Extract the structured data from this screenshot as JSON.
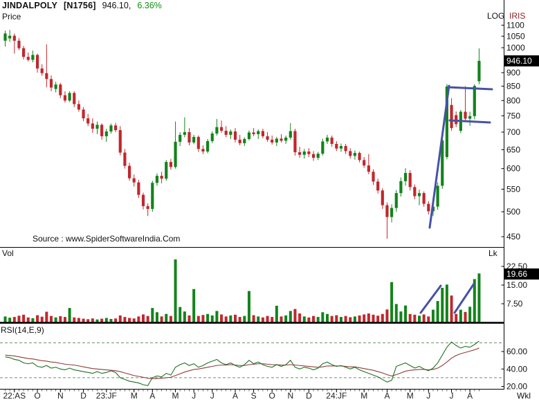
{
  "header": {
    "symbol": "JINDALPOLY",
    "series": "[N1756]",
    "price": "946.10,",
    "change": "6.36%"
  },
  "price_panel": {
    "label": "Price",
    "scale_label": "LOG",
    "app_label": "IRIS",
    "marker": "946.10",
    "source_text": "Source : www.SpiderSoftwareIndia.Com"
  },
  "volume_panel": {
    "label": "Vol",
    "unit_label": "Lk",
    "marker": "19.66"
  },
  "rsi_panel": {
    "label": "RSI(14,E,9)"
  },
  "x_axis": {
    "timeframe_label": "Wkl"
  },
  "chart_data": {
    "type": "candlestick",
    "timeframe": "Weekly",
    "symbol": "JINDALPOLY",
    "scale": "log",
    "ylim_price": [
      450,
      1100
    ],
    "last_price": 946.1,
    "last_volume_lk": 19.66,
    "colors": {
      "up": "#12841a",
      "down": "#c1272d",
      "annotation": "#4552a8",
      "rsi": "#1f6f1f",
      "rsi_signal": "#8e3b3b",
      "band": "#6b8f6b"
    },
    "price_ticks": [
      1100,
      1050,
      1000,
      900,
      850,
      800,
      750,
      700,
      650,
      600,
      550,
      500,
      450
    ],
    "vol_ticks": [
      {
        "v": 22.5,
        "label": "22.50"
      },
      {
        "v": 15,
        "label": "15.00"
      },
      {
        "v": 7.5,
        "label": "7.50"
      }
    ],
    "rsi_ticks": [
      {
        "v": 60,
        "label": "60.00"
      },
      {
        "v": 40,
        "label": "40.00"
      },
      {
        "v": 20,
        "label": "20.00"
      }
    ],
    "rsi_bands": [
      70,
      30
    ],
    "x_labels": [
      {
        "t": "22:AS",
        "i": 2
      },
      {
        "t": "O",
        "i": 7
      },
      {
        "t": "N",
        "i": 12
      },
      {
        "t": "D",
        "i": 17
      },
      {
        "t": "23:JF",
        "i": 22
      },
      {
        "t": "M",
        "i": 28
      },
      {
        "t": "A",
        "i": 32
      },
      {
        "t": "M",
        "i": 37
      },
      {
        "t": "J",
        "i": 41
      },
      {
        "t": "J",
        "i": 45
      },
      {
        "t": "A",
        "i": 50
      },
      {
        "t": "S",
        "i": 54
      },
      {
        "t": "O",
        "i": 58
      },
      {
        "t": "N",
        "i": 62
      },
      {
        "t": "D",
        "i": 66
      },
      {
        "t": "24:JF",
        "i": 72
      },
      {
        "t": "M",
        "i": 78
      },
      {
        "t": "A",
        "i": 83
      },
      {
        "t": "M",
        "i": 88
      },
      {
        "t": "J",
        "i": 92
      },
      {
        "t": "J",
        "i": 97
      },
      {
        "t": "A",
        "i": 101
      }
    ],
    "candles": [
      [
        1030,
        1075,
        1005,
        1062
      ],
      [
        1040,
        1078,
        1025,
        1052
      ],
      [
        1052,
        1062,
        975,
        1030
      ],
      [
        1030,
        1042,
        990,
        998
      ],
      [
        998,
        1008,
        952,
        962
      ],
      [
        962,
        980,
        944,
        950
      ],
      [
        950,
        988,
        940,
        970
      ],
      [
        970,
        975,
        900,
        916
      ],
      [
        916,
        932,
        888,
        898
      ],
      [
        898,
        1014,
        846,
        876
      ],
      [
        876,
        890,
        832,
        845
      ],
      [
        840,
        866,
        828,
        856
      ],
      [
        856,
        862,
        808,
        818
      ],
      [
        818,
        832,
        793,
        800
      ],
      [
        800,
        832,
        795,
        826
      ],
      [
        826,
        832,
        778,
        788
      ],
      [
        788,
        800,
        763,
        770
      ],
      [
        770,
        778,
        733,
        742
      ],
      [
        742,
        756,
        718,
        726
      ],
      [
        726,
        742,
        698,
        710
      ],
      [
        710,
        732,
        694,
        722
      ],
      [
        722,
        726,
        678,
        688
      ],
      [
        688,
        710,
        672,
        702
      ],
      [
        702,
        726,
        696,
        720
      ],
      [
        720,
        728,
        700,
        706
      ],
      [
        706,
        718,
        635,
        642
      ],
      [
        642,
        652,
        600,
        607
      ],
      [
        607,
        615,
        570,
        576
      ],
      [
        576,
        585,
        556,
        566
      ],
      [
        566,
        572,
        530,
        537
      ],
      [
        537,
        542,
        505,
        512
      ],
      [
        512,
        518,
        491,
        506
      ],
      [
        506,
        570,
        500,
        565
      ],
      [
        565,
        588,
        558,
        582
      ],
      [
        582,
        592,
        564,
        575
      ],
      [
        575,
        622,
        570,
        617
      ],
      [
        617,
        625,
        597,
        604
      ],
      [
        604,
        732,
        600,
        672
      ],
      [
        672,
        700,
        660,
        692
      ],
      [
        692,
        745,
        685,
        700
      ],
      [
        700,
        712,
        662,
        670
      ],
      [
        670,
        692,
        665,
        686
      ],
      [
        686,
        690,
        644,
        652
      ],
      [
        652,
        662,
        638,
        645
      ],
      [
        645,
        680,
        640,
        674
      ],
      [
        674,
        702,
        668,
        696
      ],
      [
        696,
        740,
        690,
        715
      ],
      [
        715,
        735,
        698,
        704
      ],
      [
        704,
        718,
        685,
        692
      ],
      [
        692,
        708,
        680,
        702
      ],
      [
        702,
        712,
        670,
        678
      ],
      [
        678,
        692,
        662,
        668
      ],
      [
        668,
        685,
        660,
        680
      ],
      [
        680,
        705,
        676,
        699
      ],
      [
        699,
        712,
        688,
        694
      ],
      [
        694,
        708,
        680,
        703
      ],
      [
        703,
        710,
        682,
        688
      ],
      [
        688,
        700,
        672,
        678
      ],
      [
        678,
        690,
        664,
        670
      ],
      [
        670,
        686,
        660,
        681
      ],
      [
        681,
        694,
        670,
        675
      ],
      [
        675,
        690,
        666,
        684
      ],
      [
        684,
        727,
        678,
        703
      ],
      [
        703,
        710,
        634,
        643
      ],
      [
        643,
        658,
        628,
        636
      ],
      [
        636,
        652,
        626,
        645
      ],
      [
        645,
        654,
        630,
        638
      ],
      [
        638,
        646,
        620,
        628
      ],
      [
        628,
        644,
        622,
        639
      ],
      [
        639,
        681,
        634,
        673
      ],
      [
        673,
        692,
        666,
        684
      ],
      [
        684,
        690,
        658,
        666
      ],
      [
        666,
        674,
        646,
        653
      ],
      [
        653,
        667,
        644,
        660
      ],
      [
        660,
        666,
        638,
        646
      ],
      [
        646,
        654,
        626,
        633
      ],
      [
        633,
        648,
        623,
        641
      ],
      [
        641,
        645,
        616,
        622
      ],
      [
        622,
        630,
        602,
        608
      ],
      [
        608,
        638,
        586,
        592
      ],
      [
        592,
        598,
        560,
        568
      ],
      [
        568,
        575,
        540,
        547
      ],
      [
        547,
        552,
        506,
        514
      ],
      [
        514,
        520,
        446,
        489
      ],
      [
        489,
        516,
        478,
        508
      ],
      [
        508,
        548,
        500,
        541
      ],
      [
        541,
        578,
        533,
        569
      ],
      [
        569,
        601,
        558,
        589
      ],
      [
        589,
        596,
        547,
        555
      ],
      [
        555,
        561,
        527,
        534
      ],
      [
        534,
        549,
        514,
        541
      ],
      [
        541,
        545,
        511,
        517
      ],
      [
        517,
        523,
        494,
        501
      ],
      [
        501,
        516,
        491,
        511
      ],
      [
        511,
        566,
        504,
        558
      ],
      [
        558,
        683,
        551,
        676
      ],
      [
        630,
        858,
        624,
        849
      ],
      [
        785,
        808,
        704,
        712
      ],
      [
        752,
        764,
        715,
        724
      ],
      [
        704,
        769,
        697,
        763
      ],
      [
        763,
        850,
        734,
        741
      ],
      [
        741,
        763,
        719,
        749
      ],
      [
        749,
        857,
        739,
        851
      ],
      [
        868,
        997,
        857,
        946.1
      ]
    ],
    "volumes": [
      2.4,
      1.9,
      2.2,
      2.7,
      3.1,
      2.0,
      1.7,
      2.9,
      2.3,
      4.3,
      2.6,
      2.0,
      2.5,
      2.2,
      5.8,
      2.0,
      1.8,
      1.5,
      1.3,
      1.6,
      1.2,
      1.5,
      1.8,
      1.4,
      1.6,
      2.8,
      2.2,
      1.8,
      1.6,
      2.4,
      3.2,
      2.6,
      5.8,
      4.1,
      2.4,
      3.4,
      2.6,
      25.3,
      6.2,
      4.4,
      2.8,
      13.4,
      2.6,
      3.0,
      3.4,
      2.8,
      4.6,
      3.2,
      2.4,
      2.8,
      3.1,
      2.2,
      2.6,
      12.6,
      2.9,
      2.4,
      2.0,
      2.6,
      2.2,
      6.7,
      2.4,
      2.8,
      4.6,
      5.4,
      3.6,
      2.4,
      2.0,
      2.6,
      2.2,
      4.1,
      3.4,
      2.6,
      2.9,
      2.2,
      2.6,
      2.1,
      2.4,
      2.8,
      3.2,
      3.6,
      3.1,
      2.7,
      3.4,
      5.2,
      16.2,
      7.4,
      4.4,
      6.8,
      3.4,
      3.1,
      2.7,
      3.2,
      2.4,
      5.1,
      8.6,
      13.9,
      15.2,
      10.8,
      3.4,
      5.1,
      4.2,
      6.3,
      17.4,
      19.66
    ],
    "rsi": [
      54,
      53,
      51,
      50,
      47,
      46,
      47,
      43,
      42,
      44,
      41,
      42,
      40,
      39,
      41,
      39,
      38,
      37,
      36,
      35,
      37,
      35,
      36,
      38,
      36,
      30,
      28,
      26,
      25,
      24,
      22,
      21,
      30,
      32,
      31,
      35,
      33,
      42,
      45,
      47,
      44,
      46,
      42,
      44,
      47,
      49,
      51,
      47,
      45,
      47,
      44,
      42,
      45,
      50,
      46,
      48,
      45,
      43,
      42,
      45,
      43,
      45,
      50,
      42,
      40,
      42,
      41,
      39,
      41,
      46,
      48,
      45,
      43,
      44,
      42,
      40,
      42,
      39,
      37,
      35,
      33,
      31,
      28,
      25,
      27,
      43,
      45,
      47,
      44,
      41,
      43,
      40,
      38,
      41,
      47,
      56,
      65,
      71,
      67,
      64,
      66,
      65,
      68,
      72
    ],
    "rsi_signal": [
      56,
      55.5,
      55,
      54,
      53,
      52,
      51.5,
      50.5,
      49.5,
      49,
      48,
      47.5,
      46.5,
      45.5,
      45,
      44.5,
      43.5,
      42.5,
      41.5,
      40.5,
      40,
      39.5,
      39,
      38.5,
      38,
      37,
      35.5,
      34,
      32.5,
      31.5,
      30.5,
      29.5,
      29,
      29,
      29.5,
      30,
      30.5,
      32.5,
      34.5,
      36.5,
      38,
      39.5,
      40,
      41,
      42,
      43,
      44,
      44.5,
      44.5,
      45,
      44.5,
      44,
      44,
      45,
      45.5,
      46,
      46,
      45.5,
      45,
      45,
      44.5,
      44.5,
      45,
      44.5,
      44,
      43.5,
      43,
      42.5,
      42,
      42.5,
      43.5,
      43.5,
      43.5,
      43.5,
      43,
      42.5,
      42.5,
      41.5,
      40.5,
      39.5,
      38.5,
      37,
      35.5,
      33.5,
      32,
      33.5,
      35.5,
      37.5,
      38.5,
      39,
      39.5,
      39.5,
      39,
      39.5,
      41,
      44,
      48,
      52.5,
      55.5,
      57.5,
      59,
      60.5,
      62,
      64
    ],
    "annotations": {
      "price_lines": [
        [
          621,
          329,
          649,
          124
        ],
        [
          647,
          126,
          711,
          129
        ],
        [
          650,
          174,
          708,
          177
        ]
      ],
      "volume_lines": [
        [
          608,
          452,
          637,
          413
        ],
        [
          657,
          452,
          685,
          410
        ]
      ]
    }
  }
}
